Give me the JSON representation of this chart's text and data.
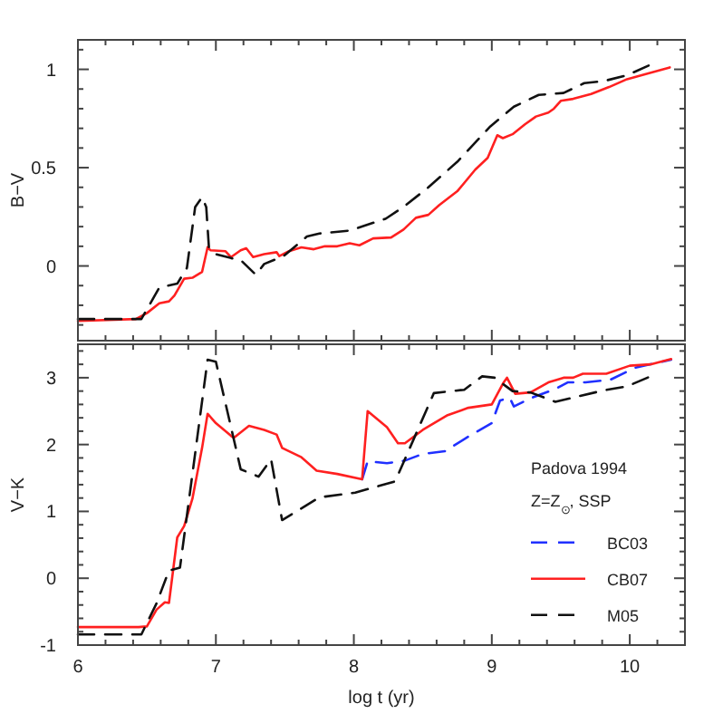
{
  "chart_data": [
    {
      "type": "line",
      "ylabel": "B−V",
      "xlim": [
        6,
        10.4
      ],
      "ylim": [
        -0.38,
        1.15
      ],
      "tick_labels": "y",
      "legend": false,
      "grid": false,
      "xticks": [
        6,
        {
          "value": 6.2,
          "label": null
        },
        {
          "value": 6.4,
          "label": null
        },
        {
          "value": 6.6,
          "label": null
        },
        {
          "value": 6.8,
          "label": null
        },
        7,
        {
          "value": 7.2,
          "label": null
        },
        {
          "value": 7.4,
          "label": null
        },
        {
          "value": 7.6,
          "label": null
        },
        {
          "value": 7.8,
          "label": null
        },
        8,
        {
          "value": 8.2,
          "label": null
        },
        {
          "value": 8.4,
          "label": null
        },
        {
          "value": 8.6,
          "label": null
        },
        {
          "value": 8.8,
          "label": null
        },
        9,
        {
          "value": 9.2,
          "label": null
        },
        {
          "value": 9.4,
          "label": null
        },
        {
          "value": 9.6,
          "label": null
        },
        {
          "value": 9.8,
          "label": null
        },
        10,
        {
          "value": 10.2,
          "label": null
        }
      ],
      "yticks": [
        {
          "value": -0.3,
          "label": null
        },
        {
          "value": -0.2,
          "label": null
        },
        {
          "value": -0.1,
          "label": null
        },
        0,
        {
          "value": 0.1,
          "label": null
        },
        {
          "value": 0.2,
          "label": null
        },
        {
          "value": 0.3,
          "label": null
        },
        {
          "value": 0.4,
          "label": null
        },
        0.5,
        {
          "value": 0.6,
          "label": null
        },
        {
          "value": 0.7,
          "label": null
        },
        {
          "value": 0.8,
          "label": null
        },
        {
          "value": 0.9,
          "label": null
        },
        1,
        {
          "value": 1.1,
          "label": null
        }
      ],
      "series": [
        {
          "color": "#ff2020",
          "line_style": "solid",
          "x": [
            6,
            6.42,
            6.5,
            6.59,
            6.66,
            6.7,
            6.77,
            6.83,
            6.9,
            6.94,
            6.96,
            7.07,
            7.11,
            7.18,
            7.22,
            7.27,
            7.35,
            7.44,
            7.46,
            7.53,
            7.62,
            7.71,
            7.79,
            7.88,
            7.97,
            8.04,
            8.14,
            8.27,
            8.36,
            8.45,
            8.54,
            8.62,
            8.75,
            8.88,
            8.97,
            9.04,
            9.08,
            9.15,
            9.24,
            9.32,
            9.41,
            9.45,
            9.5,
            9.59,
            9.72,
            9.85,
            9.98,
            10.11,
            10.29
          ],
          "values": [
            -0.28,
            -0.27,
            -0.24,
            -0.19,
            -0.18,
            -0.15,
            -0.065,
            -0.06,
            -0.03,
            0.095,
            0.08,
            0.075,
            0.045,
            0.08,
            0.09,
            0.045,
            0.06,
            0.07,
            0.05,
            0.075,
            0.095,
            0.085,
            0.1,
            0.1,
            0.115,
            0.105,
            0.14,
            0.145,
            0.185,
            0.245,
            0.26,
            0.31,
            0.38,
            0.49,
            0.55,
            0.665,
            0.65,
            0.67,
            0.72,
            0.76,
            0.78,
            0.8,
            0.84,
            0.85,
            0.875,
            0.91,
            0.95,
            0.975,
            1.01
          ]
        },
        {
          "color": "#111111",
          "line_style": "dashed",
          "x": [
            6,
            6.46,
            6.59,
            6.72,
            6.79,
            6.85,
            6.9,
            6.93,
            6.95,
            7,
            7.11,
            7.18,
            7.29,
            7.35,
            7.49,
            7.66,
            7.75,
            7.97,
            8.23,
            8.36,
            8.54,
            8.75,
            8.99,
            9.16,
            9.34,
            9.52,
            9.67,
            9.81,
            9.98,
            10.17
          ],
          "values": [
            -0.27,
            -0.27,
            -0.11,
            -0.09,
            -0.01,
            0.3,
            0.35,
            0.3,
            0.09,
            0.06,
            0.04,
            0.03,
            -0.045,
            0.01,
            0.05,
            0.15,
            0.165,
            0.18,
            0.24,
            0.3,
            0.4,
            0.53,
            0.71,
            0.81,
            0.87,
            0.88,
            0.93,
            0.94,
            0.97,
            1.03
          ]
        }
      ]
    },
    {
      "type": "line",
      "ylabel": "V−K",
      "xlabel": "log t (yr)",
      "xlim": [
        6,
        10.4
      ],
      "ylim": [
        -1,
        3.5
      ],
      "legend": "right",
      "legend_title": "Padova 1994",
      "annotations": [
        "Z=Z$_{⊙}$, SSP"
      ],
      "grid": false,
      "xticks": [
        6,
        {
          "value": 6.2,
          "label": null
        },
        {
          "value": 6.4,
          "label": null
        },
        {
          "value": 6.6,
          "label": null
        },
        {
          "value": 6.8,
          "label": null
        },
        7,
        {
          "value": 7.2,
          "label": null
        },
        {
          "value": 7.4,
          "label": null
        },
        {
          "value": 7.6,
          "label": null
        },
        {
          "value": 7.8,
          "label": null
        },
        8,
        {
          "value": 8.2,
          "label": null
        },
        {
          "value": 8.4,
          "label": null
        },
        {
          "value": 8.6,
          "label": null
        },
        {
          "value": 8.8,
          "label": null
        },
        9,
        {
          "value": 9.2,
          "label": null
        },
        {
          "value": 9.4,
          "label": null
        },
        {
          "value": 9.6,
          "label": null
        },
        {
          "value": 9.8,
          "label": null
        },
        10,
        {
          "value": 10.2,
          "label": null
        }
      ],
      "yticks": [
        -1,
        {
          "value": -0.8,
          "label": null
        },
        {
          "value": -0.6,
          "label": null
        },
        {
          "value": -0.4,
          "label": null
        },
        {
          "value": -0.2,
          "label": null
        },
        0,
        {
          "value": 0.2,
          "label": null
        },
        {
          "value": 0.4,
          "label": null
        },
        {
          "value": 0.6,
          "label": null
        },
        {
          "value": 0.8,
          "label": null
        },
        1,
        {
          "value": 1.2,
          "label": null
        },
        {
          "value": 1.4,
          "label": null
        },
        {
          "value": 1.6,
          "label": null
        },
        {
          "value": 1.8,
          "label": null
        },
        2,
        {
          "value": 2.2,
          "label": null
        },
        {
          "value": 2.4,
          "label": null
        },
        {
          "value": 2.6,
          "label": null
        },
        {
          "value": 2.8,
          "label": null
        },
        3,
        {
          "value": 3.2,
          "label": null
        },
        {
          "value": 3.4,
          "label": null
        }
      ],
      "series": [
        {
          "name": "BC03",
          "color": "#2030ff",
          "line_style": "dashed",
          "x": [
            8.06,
            8.1,
            8.24,
            8.37,
            8.5,
            8.66,
            8.83,
            9,
            9.06,
            9.13,
            9.16,
            9.29,
            9.46,
            9.55,
            9.68,
            9.86,
            10.04,
            10.3
          ],
          "values": [
            1.48,
            1.75,
            1.72,
            1.76,
            1.86,
            1.9,
            2.12,
            2.32,
            2.66,
            2.7,
            2.57,
            2.7,
            2.83,
            2.93,
            2.93,
            2.97,
            3.15,
            3.27
          ]
        },
        {
          "name": "CB07",
          "color": "#ff2020",
          "line_style": "solid",
          "x": [
            6,
            6.44,
            6.5,
            6.57,
            6.63,
            6.66,
            6.72,
            6.77,
            6.83,
            6.9,
            6.94,
            7,
            7.11,
            7.13,
            7.24,
            7.35,
            7.44,
            7.48,
            7.62,
            7.73,
            7.88,
            8.06,
            8.1,
            8.24,
            8.32,
            8.37,
            8.5,
            8.68,
            8.83,
            9,
            9.08,
            9.11,
            9.17,
            9.28,
            9.41,
            9.52,
            9.59,
            9.66,
            9.83,
            10,
            10.15,
            10.3
          ],
          "values": [
            -0.73,
            -0.73,
            -0.72,
            -0.47,
            -0.36,
            -0.37,
            0.61,
            0.78,
            1.19,
            1.95,
            2.46,
            2.32,
            2.13,
            2.1,
            2.28,
            2.22,
            2.15,
            1.95,
            1.81,
            1.61,
            1.56,
            1.48,
            2.5,
            2.26,
            2.02,
            2.02,
            2.22,
            2.44,
            2.55,
            2.6,
            2.91,
            3,
            2.76,
            2.78,
            2.93,
            3,
            3,
            3.06,
            3.06,
            3.18,
            3.2,
            3.28
          ]
        },
        {
          "name": "M05",
          "color": "#111111",
          "line_style": "dashed",
          "x": [
            6,
            6.46,
            6.57,
            6.66,
            6.74,
            6.94,
            7,
            7.18,
            7.31,
            7.4,
            7.48,
            7.75,
            8.01,
            8.3,
            8.58,
            8.8,
            8.93,
            9.02,
            9.15,
            9.28,
            9.46,
            9.81,
            9.98,
            10.15
          ],
          "values": [
            -0.84,
            -0.84,
            -0.375,
            0.115,
            0.16,
            3.27,
            3.24,
            1.63,
            1.52,
            1.78,
            0.87,
            1.21,
            1.28,
            1.45,
            2.77,
            2.82,
            3.02,
            3,
            2.8,
            2.78,
            2.64,
            2.81,
            2.87,
            3.02
          ]
        }
      ]
    }
  ]
}
